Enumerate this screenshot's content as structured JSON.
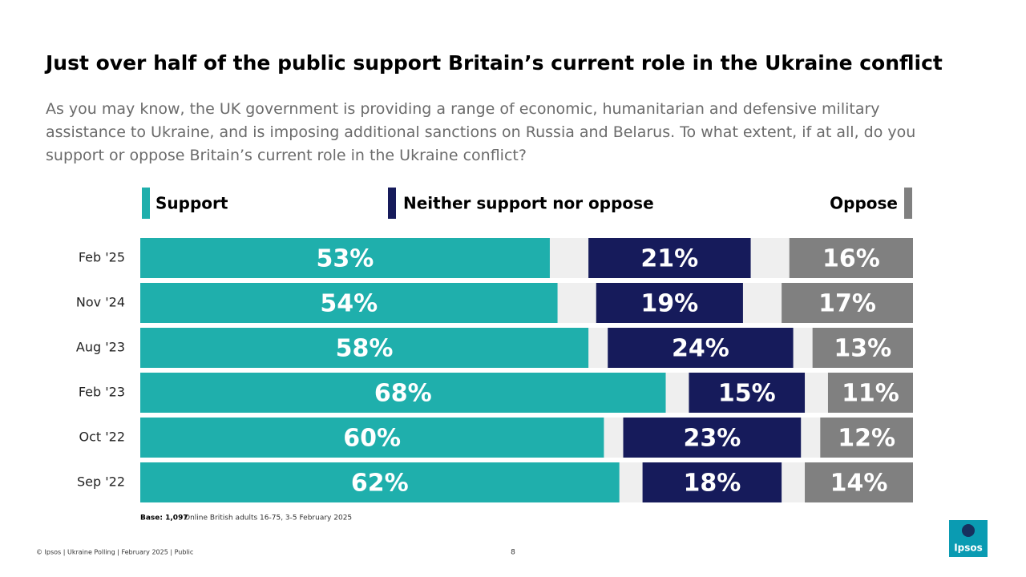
{
  "chart_data": {
    "type": "stacked-bar",
    "title": "Just over half of the public support Britain’s current role in the Ukraine conflict",
    "subtitle": "As you may know, the UK government is providing a range of economic, humanitarian and defensive military assistance to Ukraine, and is imposing additional sanctions on Russia and Belarus. To what extent, if at all, do you support or oppose Britain’s current role in the Ukraine conflict?",
    "categories": [
      "Feb '25",
      "Nov '24",
      "Aug '23",
      "Feb '23",
      "Oct '22",
      "Sep '22"
    ],
    "series": [
      {
        "name": "Support",
        "color": "#1fafac",
        "values": [
          53,
          54,
          58,
          68,
          60,
          62
        ],
        "value_labels": [
          "53%",
          "54%",
          "58%",
          "68%",
          "60%",
          "62%"
        ]
      },
      {
        "name": "Neither support nor oppose",
        "color": "#161b5b",
        "values": [
          21,
          19,
          24,
          15,
          23,
          18
        ],
        "value_labels": [
          "21%",
          "19%",
          "24%",
          "15%",
          "23%",
          "18%"
        ]
      },
      {
        "name": "Oppose",
        "color": "#808080",
        "values": [
          16,
          17,
          13,
          11,
          12,
          14
        ],
        "value_labels": [
          "16%",
          "17%",
          "13%",
          "11%",
          "12%",
          "14%"
        ]
      }
    ],
    "xlim": [
      0,
      100
    ],
    "base_note": {
      "label": "Base: 1,097",
      "text": "Online British adults 16-75, 3-5 February 2025"
    }
  },
  "footer": {
    "text": "© Ipsos | Ukraine Polling | February 2025 | Public",
    "page": "8"
  },
  "logo": "Ipsos"
}
